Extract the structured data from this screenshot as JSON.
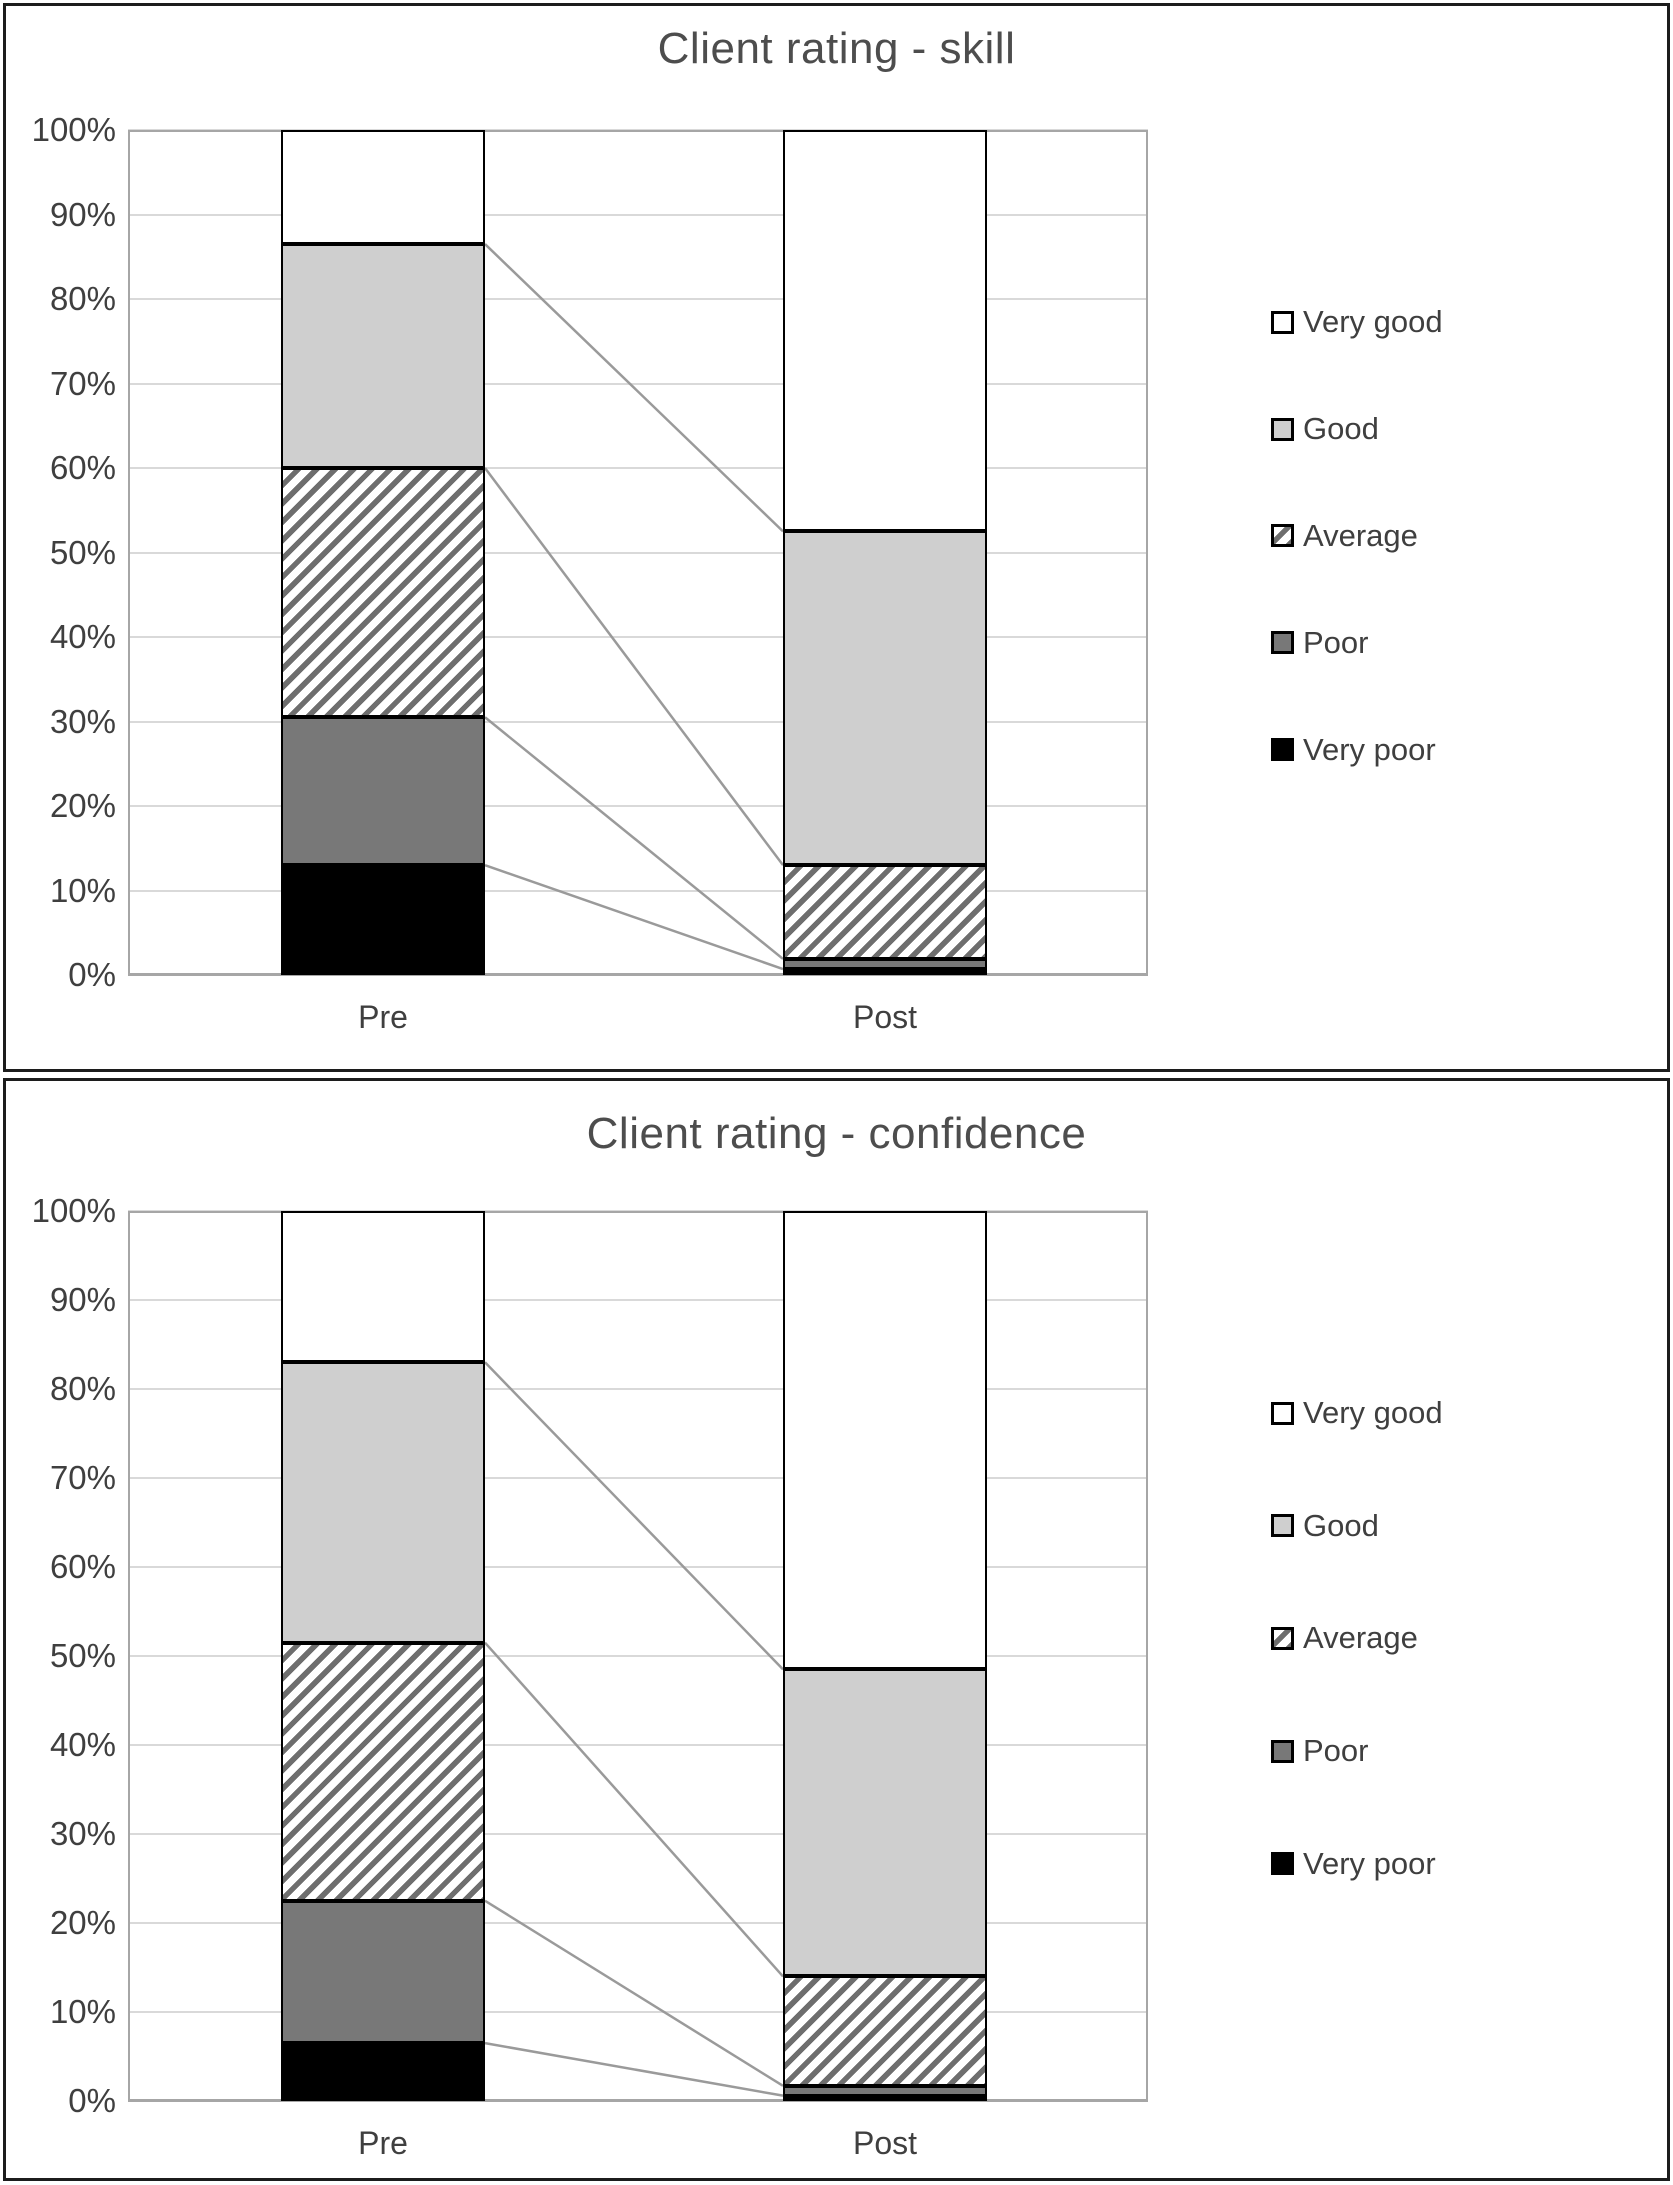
{
  "figure": {
    "description_labels": {
      "pre": "Pre",
      "post": "Post"
    },
    "background_color": "#ffffff",
    "border_color": "#1c1c1c"
  },
  "chart_data": [
    {
      "type": "bar",
      "subtype": "stacked-100-percent-column",
      "title": "Client rating - skill",
      "categories": [
        "Pre",
        "Post"
      ],
      "series": [
        {
          "name": "Very poor",
          "style": "very_poor",
          "values": [
            13,
            0.7
          ]
        },
        {
          "name": "Poor",
          "style": "poor",
          "values": [
            17.5,
            1.2
          ]
        },
        {
          "name": "Average",
          "style": "average",
          "values": [
            29.5,
            11.1
          ]
        },
        {
          "name": "Good",
          "style": "good",
          "values": [
            26.5,
            39.5
          ]
        },
        {
          "name": "Very good",
          "style": "very_good",
          "values": [
            13.5,
            47.5
          ]
        }
      ],
      "y_axis": {
        "min": 0,
        "max": 100,
        "step": 10,
        "tick_labels": [
          "0%",
          "10%",
          "20%",
          "30%",
          "40%",
          "50%",
          "60%",
          "70%",
          "80%",
          "90%",
          "100%"
        ]
      },
      "legend": {
        "position": "right",
        "entries": [
          "Very good",
          "Good",
          "Average",
          "Poor",
          "Very poor"
        ]
      },
      "grid": true,
      "series_connector_lines": true
    },
    {
      "type": "bar",
      "subtype": "stacked-100-percent-column",
      "title": "Client rating - confidence",
      "categories": [
        "Pre",
        "Post"
      ],
      "series": [
        {
          "name": "Very poor",
          "style": "very_poor",
          "values": [
            6.5,
            0.6
          ]
        },
        {
          "name": "Poor",
          "style": "poor",
          "values": [
            16,
            1.1
          ]
        },
        {
          "name": "Average",
          "style": "average",
          "values": [
            29,
            12.3
          ]
        },
        {
          "name": "Good",
          "style": "good",
          "values": [
            31.5,
            34.5
          ]
        },
        {
          "name": "Very good",
          "style": "very_good",
          "values": [
            17,
            51.5
          ]
        }
      ],
      "y_axis": {
        "min": 0,
        "max": 100,
        "step": 10,
        "tick_labels": [
          "0%",
          "10%",
          "20%",
          "30%",
          "40%",
          "50%",
          "60%",
          "70%",
          "80%",
          "90%",
          "100%"
        ]
      },
      "legend": {
        "position": "right",
        "entries": [
          "Very good",
          "Good",
          "Average",
          "Poor",
          "Very poor"
        ]
      },
      "grid": true,
      "series_connector_lines": true
    }
  ],
  "styles": {
    "very_poor": {
      "fill": "#000000",
      "label": "solid black"
    },
    "poor": {
      "fill": "#787878",
      "label": "solid dark gray"
    },
    "average": {
      "fill": "diagonal-hatch",
      "hatch_color": "#6e6e6e",
      "label": "white with gray diagonal hatch"
    },
    "good": {
      "fill": "#cfcfcf",
      "label": "solid light gray"
    },
    "very_good": {
      "fill": "#ffffff",
      "label": "white with black border"
    }
  },
  "colors": {
    "gridline": "#d9d9d9",
    "plot_border": "#a6a6a6",
    "segment_border": "#000000",
    "connector_line": "#9a9a9a",
    "title_text": "#4d4d4d",
    "axis_text": "#3f3f3f"
  }
}
